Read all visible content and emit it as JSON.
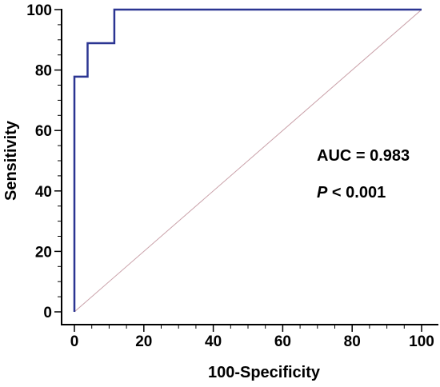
{
  "chart_data": {
    "type": "line",
    "xlabel": "100-Specificity",
    "ylabel": "Sensitivity",
    "xlim": [
      0,
      100
    ],
    "ylim": [
      0,
      100
    ],
    "x_ticks": [
      "0",
      "20",
      "40",
      "60",
      "80",
      "100"
    ],
    "y_ticks": [
      "0",
      "20",
      "40",
      "60",
      "80",
      "100"
    ],
    "grid": false,
    "legend": "none",
    "series": [
      {
        "color": "#2b3592",
        "x": [
          0,
          0,
          3.8,
          3.8,
          11.5,
          11.5,
          100
        ],
        "y": [
          0,
          77.8,
          77.8,
          88.9,
          88.9,
          100,
          100
        ]
      },
      {
        "color": "#c9a0a8",
        "x": [
          0,
          100
        ],
        "y": [
          0,
          100
        ]
      }
    ],
    "annotations": {
      "auc": "AUC = 0.983",
      "p_italic": "P",
      "p_rest": " < 0.001"
    }
  }
}
